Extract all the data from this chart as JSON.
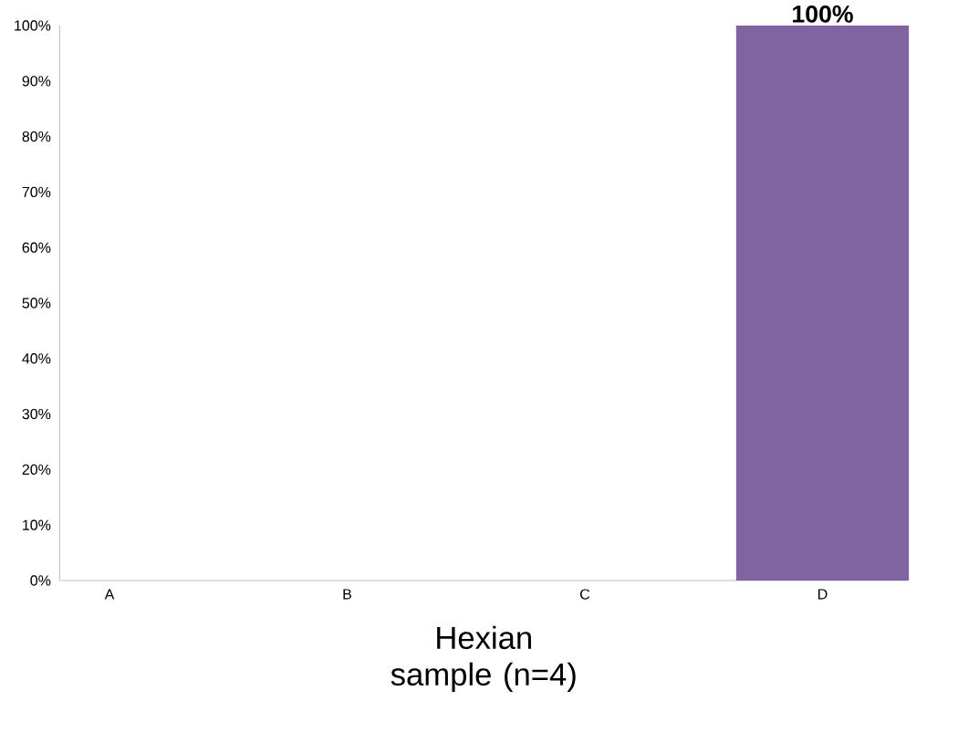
{
  "chart_data": {
    "type": "bar",
    "xlabel": "Hexian sample (n=4)",
    "categories": [
      "A",
      "B",
      "C",
      "D"
    ],
    "values": [
      0,
      0,
      0,
      100
    ],
    "color": "#8064a2",
    "value_labels": [
      null,
      null,
      null,
      "100%"
    ],
    "ylim": [
      0,
      100
    ],
    "yticks": [
      {
        "value": 0,
        "label": "0%"
      },
      {
        "value": 10,
        "label": "10%"
      },
      {
        "value": 20,
        "label": "20%"
      },
      {
        "value": 30,
        "label": "30%"
      },
      {
        "value": 40,
        "label": "40%"
      },
      {
        "value": 50,
        "label": "50%"
      },
      {
        "value": 60,
        "label": "60%"
      },
      {
        "value": 70,
        "label": "70%"
      },
      {
        "value": 80,
        "label": "80%"
      },
      {
        "value": 90,
        "label": "90%"
      },
      {
        "value": 100,
        "label": "100%"
      }
    ],
    "grid": false
  }
}
